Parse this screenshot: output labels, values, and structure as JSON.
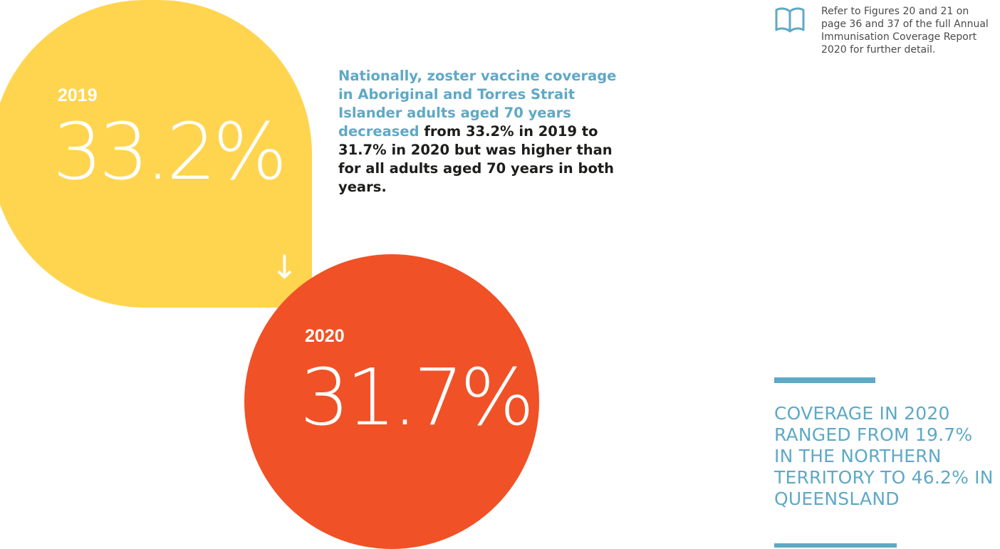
{
  "bubble_2019": {
    "year": "2019",
    "value": "33.2%",
    "color": "#ffd54f"
  },
  "bubble_2020": {
    "year": "2020",
    "value": "31.7%",
    "color": "#f05126"
  },
  "trend_arrow": {
    "icon": "arrow-down-icon",
    "glyph": "↓"
  },
  "statement": {
    "highlight": "Nationally, zoster vaccine coverage in Aboriginal and Torres Strait Islander adults aged 70 years decreased",
    "body": " from 33.2% in 2019 to 31.7% in 2020 but was higher than for all adults aged 70 years in both years."
  },
  "reference": {
    "icon": "open-book-icon",
    "text": "Refer to Figures 20 and 21 on page 36 and 37 of the full Annual Immunisation Coverage Report 2020 for further detail."
  },
  "callout": {
    "text": "COVERAGE IN 2020 RANGED FROM 19.7% IN THE NORTHERN TERRITORY TO 46.2% IN QUEENSLAND"
  },
  "colors": {
    "accent_blue": "#5ea9c6",
    "yellow": "#ffd54f",
    "red": "#f05126",
    "text_dark": "#1d1d1b"
  }
}
